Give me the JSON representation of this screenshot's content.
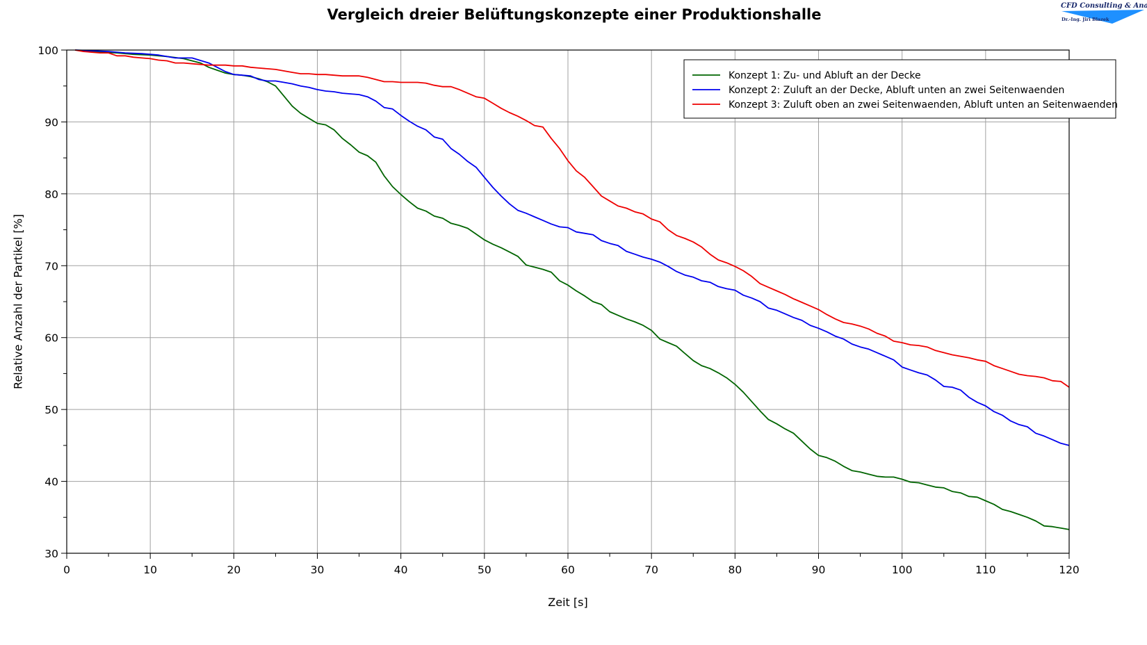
{
  "logo": {
    "company": "CFD Consulting & Analysis",
    "person": "Dr.-Ing. Jiri Blazek",
    "color": "#1e90ff"
  },
  "chart_data": {
    "type": "line",
    "title": "Vergleich dreier Belüftungskonzepte einer Produktionshalle",
    "xlabel": "Zeit [s]",
    "ylabel": "Relative Anzahl der Partikel [%]",
    "xlim": [
      0,
      120
    ],
    "ylim": [
      30,
      100
    ],
    "xticks": [
      0,
      10,
      20,
      30,
      40,
      50,
      60,
      70,
      80,
      90,
      100,
      110,
      120
    ],
    "yticks": [
      30,
      40,
      50,
      60,
      70,
      80,
      90,
      100
    ],
    "grid": true,
    "legend_position": "top-right",
    "series": [
      {
        "name": "Konzept 1: Zu- und Abluft an der Decke",
        "color": "#006400",
        "x": [
          1,
          2,
          4,
          6,
          8,
          10,
          12,
          14,
          16,
          17,
          18,
          19,
          20,
          21,
          22,
          23,
          24,
          25,
          26,
          27,
          28,
          29,
          30,
          31,
          32,
          33,
          34,
          35,
          36,
          37,
          38,
          39,
          40,
          41,
          42,
          43,
          44,
          45,
          46,
          47,
          48,
          49,
          50,
          51,
          52,
          53,
          54,
          55,
          56,
          57,
          58,
          59,
          60,
          61,
          62,
          63,
          64,
          65,
          66,
          67,
          68,
          69,
          70,
          71,
          72,
          73,
          74,
          75,
          76,
          77,
          78,
          79,
          80,
          81,
          82,
          83,
          84,
          85,
          86,
          87,
          88,
          89,
          90,
          91,
          92,
          93,
          94,
          95,
          96,
          97,
          98,
          99,
          100,
          101,
          102,
          103,
          104,
          105,
          106,
          107,
          108,
          109,
          110,
          111,
          112,
          113,
          114,
          115,
          116,
          117,
          118,
          119,
          120
        ],
        "y": [
          100,
          99.9,
          99.7,
          99.6,
          99.4,
          99.3,
          99.1,
          98.8,
          98.2,
          97.6,
          97.2,
          96.8,
          96.6,
          96.5,
          96.3,
          96,
          95.6,
          95,
          93.6,
          92.2,
          91.2,
          90.5,
          89.8,
          89.6,
          88.9,
          87.7,
          86.8,
          85.8,
          85.3,
          84.4,
          82.5,
          81,
          79.9,
          78.9,
          78,
          77.6,
          76.9,
          76.6,
          75.9,
          75.6,
          75.2,
          74.4,
          73.6,
          73,
          72.5,
          71.9,
          71.3,
          70.1,
          69.8,
          69.5,
          69.1,
          67.9,
          67.3,
          66.5,
          65.8,
          65,
          64.6,
          63.6,
          63.1,
          62.6,
          62.2,
          61.7,
          61,
          59.8,
          59.3,
          58.8,
          57.8,
          56.8,
          56.1,
          55.7,
          55.1,
          54.4,
          53.5,
          52.4,
          51.1,
          49.8,
          48.6,
          48,
          47.3,
          46.7,
          45.6,
          44.5,
          43.6,
          43.3,
          42.8,
          42.1,
          41.5,
          41.3,
          41,
          40.7,
          40.6,
          40.6,
          40.3,
          39.9,
          39.8,
          39.5,
          39.2,
          39.1,
          38.6,
          38.4,
          37.9,
          37.8,
          37.3,
          36.8,
          36.1,
          35.8,
          35.4,
          35,
          34.5,
          33.8,
          33.7,
          33.5,
          33.3
        ]
      },
      {
        "name": "Konzept 2: Zuluft an der Decke, Abluft unten an zwei Seitenwaenden",
        "color": "#0000ee",
        "x": [
          1,
          3,
          5,
          7,
          9,
          11,
          13,
          15,
          17,
          18,
          19,
          20,
          21,
          22,
          23,
          24,
          25,
          26,
          27,
          28,
          29,
          30,
          31,
          32,
          33,
          34,
          35,
          36,
          37,
          38,
          39,
          40,
          41,
          42,
          43,
          44,
          45,
          46,
          47,
          48,
          49,
          50,
          51,
          52,
          53,
          54,
          55,
          56,
          57,
          58,
          59,
          60,
          61,
          62,
          63,
          64,
          65,
          66,
          67,
          68,
          69,
          70,
          71,
          72,
          73,
          74,
          75,
          76,
          77,
          78,
          79,
          80,
          81,
          82,
          83,
          84,
          85,
          86,
          87,
          88,
          89,
          90,
          91,
          92,
          93,
          94,
          95,
          96,
          97,
          98,
          99,
          100,
          101,
          102,
          103,
          104,
          105,
          106,
          107,
          108,
          109,
          110,
          111,
          112,
          113,
          114,
          115,
          116,
          117,
          118,
          119,
          120
        ],
        "y": [
          100,
          99.9,
          99.8,
          99.6,
          99.5,
          99.3,
          98.9,
          98.9,
          98.2,
          97.6,
          97,
          96.6,
          96.5,
          96.4,
          95.9,
          95.7,
          95.7,
          95.5,
          95.3,
          95,
          94.8,
          94.5,
          94.3,
          94.2,
          94,
          93.9,
          93.8,
          93.5,
          92.9,
          92,
          91.8,
          90.9,
          90.1,
          89.4,
          88.9,
          87.9,
          87.6,
          86.3,
          85.5,
          84.5,
          83.7,
          82.3,
          80.9,
          79.7,
          78.6,
          77.7,
          77.3,
          76.8,
          76.3,
          75.8,
          75.4,
          75.3,
          74.7,
          74.5,
          74.3,
          73.5,
          73.1,
          72.8,
          72,
          71.6,
          71.2,
          70.9,
          70.5,
          69.9,
          69.2,
          68.7,
          68.4,
          67.9,
          67.7,
          67.1,
          66.8,
          66.6,
          65.9,
          65.5,
          65,
          64.1,
          63.8,
          63.3,
          62.8,
          62.4,
          61.7,
          61.3,
          60.8,
          60.2,
          59.8,
          59.1,
          58.7,
          58.4,
          57.9,
          57.4,
          56.9,
          55.9,
          55.5,
          55.1,
          54.8,
          54.1,
          53.2,
          53.1,
          52.7,
          51.7,
          51,
          50.5,
          49.7,
          49.2,
          48.4,
          47.9,
          47.6,
          46.7,
          46.3,
          45.8,
          45.3,
          45
        ]
      },
      {
        "name": "Konzept 3: Zuluft oben an zwei Seitenwaenden, Abluft unten an Seitenwaenden",
        "color": "#ee0000",
        "x": [
          1,
          2,
          4,
          5,
          6,
          7,
          8,
          9,
          10,
          11,
          12,
          13,
          14,
          15,
          16,
          17,
          18,
          19,
          20,
          21,
          22,
          23,
          24,
          25,
          26,
          27,
          28,
          29,
          30,
          31,
          32,
          33,
          34,
          35,
          36,
          37,
          38,
          39,
          40,
          41,
          42,
          43,
          44,
          45,
          46,
          47,
          48,
          49,
          50,
          51,
          52,
          53,
          54,
          55,
          56,
          57,
          58,
          59,
          60,
          61,
          62,
          63,
          64,
          65,
          66,
          67,
          68,
          69,
          70,
          71,
          72,
          73,
          74,
          75,
          76,
          77,
          78,
          79,
          80,
          81,
          82,
          83,
          84,
          85,
          86,
          87,
          88,
          89,
          90,
          91,
          92,
          93,
          94,
          95,
          96,
          97,
          98,
          99,
          100,
          101,
          102,
          103,
          104,
          105,
          106,
          107,
          108,
          109,
          110,
          111,
          112,
          113,
          114,
          115,
          116,
          117,
          118,
          119,
          120
        ],
        "y": [
          100,
          99.8,
          99.6,
          99.6,
          99.2,
          99.2,
          99,
          98.9,
          98.8,
          98.6,
          98.5,
          98.2,
          98.2,
          98.1,
          98,
          97.9,
          97.9,
          97.9,
          97.8,
          97.8,
          97.6,
          97.5,
          97.4,
          97.3,
          97.1,
          96.9,
          96.7,
          96.7,
          96.6,
          96.6,
          96.5,
          96.4,
          96.4,
          96.4,
          96.2,
          95.9,
          95.6,
          95.6,
          95.5,
          95.5,
          95.5,
          95.4,
          95.1,
          94.9,
          94.9,
          94.5,
          94,
          93.5,
          93.3,
          92.6,
          91.9,
          91.3,
          90.8,
          90.2,
          89.5,
          89.3,
          87.7,
          86.3,
          84.6,
          83.2,
          82.3,
          81,
          79.7,
          79,
          78.3,
          78,
          77.5,
          77.2,
          76.5,
          76.1,
          75,
          74.2,
          73.8,
          73.3,
          72.6,
          71.6,
          70.8,
          70.4,
          69.9,
          69.3,
          68.5,
          67.5,
          67,
          66.5,
          66,
          65.4,
          64.9,
          64.4,
          63.9,
          63.2,
          62.6,
          62.1,
          61.9,
          61.6,
          61.2,
          60.6,
          60.2,
          59.5,
          59.3,
          59,
          58.9,
          58.7,
          58.2,
          57.9,
          57.6,
          57.4,
          57.2,
          56.9,
          56.7,
          56.1,
          55.7,
          55.3,
          54.9,
          54.7,
          54.6,
          54.4,
          54,
          53.9,
          53.1
        ]
      }
    ]
  }
}
